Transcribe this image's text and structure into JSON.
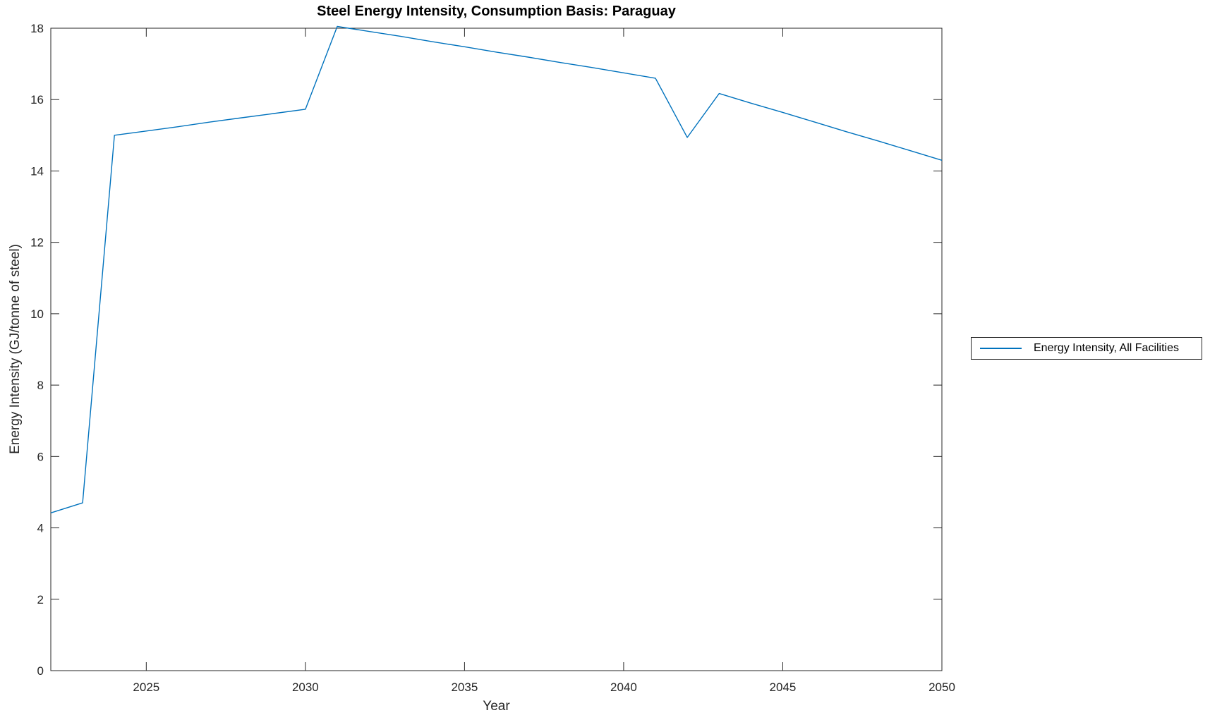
{
  "chart_data": {
    "type": "line",
    "title": "Steel Energy Intensity, Consumption Basis: Paraguay",
    "xlabel": "Year",
    "ylabel": "Energy Intensity (GJ/tonne of steel)",
    "xlim": [
      2022,
      2050
    ],
    "ylim": [
      0,
      18
    ],
    "xticks": [
      2025,
      2030,
      2035,
      2040,
      2045,
      2050
    ],
    "yticks": [
      0,
      2,
      4,
      6,
      8,
      10,
      12,
      14,
      16,
      18
    ],
    "grid": false,
    "box": true,
    "tick_direction": "in",
    "axis_color": "#262626",
    "background": "#ffffff",
    "legend": {
      "position": "outside-right",
      "entries": [
        {
          "label": "Energy Intensity, All Facilities",
          "color": "#0072BD"
        }
      ]
    },
    "series": [
      {
        "name": "Energy Intensity, All Facilities",
        "color": "#0072BD",
        "x": [
          2022,
          2023,
          2024,
          2025,
          2026,
          2027,
          2028,
          2029,
          2030,
          2031,
          2032,
          2033,
          2034,
          2035,
          2036,
          2037,
          2038,
          2039,
          2040,
          2041,
          2042,
          2043,
          2044,
          2045,
          2046,
          2047,
          2048,
          2049,
          2050
        ],
        "y": [
          4.42,
          4.7,
          15.0,
          15.12,
          15.24,
          15.37,
          15.49,
          15.61,
          15.73,
          18.05,
          17.91,
          17.77,
          17.62,
          17.48,
          17.33,
          17.19,
          17.04,
          16.9,
          16.75,
          16.6,
          14.94,
          16.17,
          15.9,
          15.64,
          15.37,
          15.1,
          14.84,
          14.57,
          14.3
        ]
      }
    ]
  }
}
